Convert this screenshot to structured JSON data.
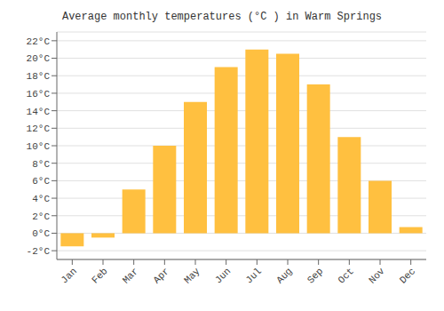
{
  "chart_data": {
    "type": "bar",
    "title": "Average monthly temperatures (°C ) in Warm Springs",
    "categories": [
      "Jan",
      "Feb",
      "Mar",
      "Apr",
      "May",
      "Jun",
      "Jul",
      "Aug",
      "Sep",
      "Oct",
      "Nov",
      "Dec"
    ],
    "values": [
      -1.5,
      -0.5,
      5.0,
      10.0,
      15.0,
      19.0,
      21.0,
      20.5,
      17.0,
      11.0,
      6.0,
      0.7
    ],
    "color": "#FFC040",
    "ylim": [
      -3,
      23
    ],
    "yticks": [
      {
        "value": -2,
        "label": "-2°C"
      },
      {
        "value": 0,
        "label": "0°C"
      },
      {
        "value": 2,
        "label": "2°C"
      },
      {
        "value": 4,
        "label": "4°C"
      },
      {
        "value": 6,
        "label": "6°C"
      },
      {
        "value": 8,
        "label": "8°C"
      },
      {
        "value": 10,
        "label": "10°C"
      },
      {
        "value": 12,
        "label": "12°C"
      },
      {
        "value": 14,
        "label": "14°C"
      },
      {
        "value": 16,
        "label": "16°C"
      },
      {
        "value": 18,
        "label": "18°C"
      },
      {
        "value": 20,
        "label": "20°C"
      },
      {
        "value": 22,
        "label": "22°C"
      }
    ],
    "grid": true
  }
}
